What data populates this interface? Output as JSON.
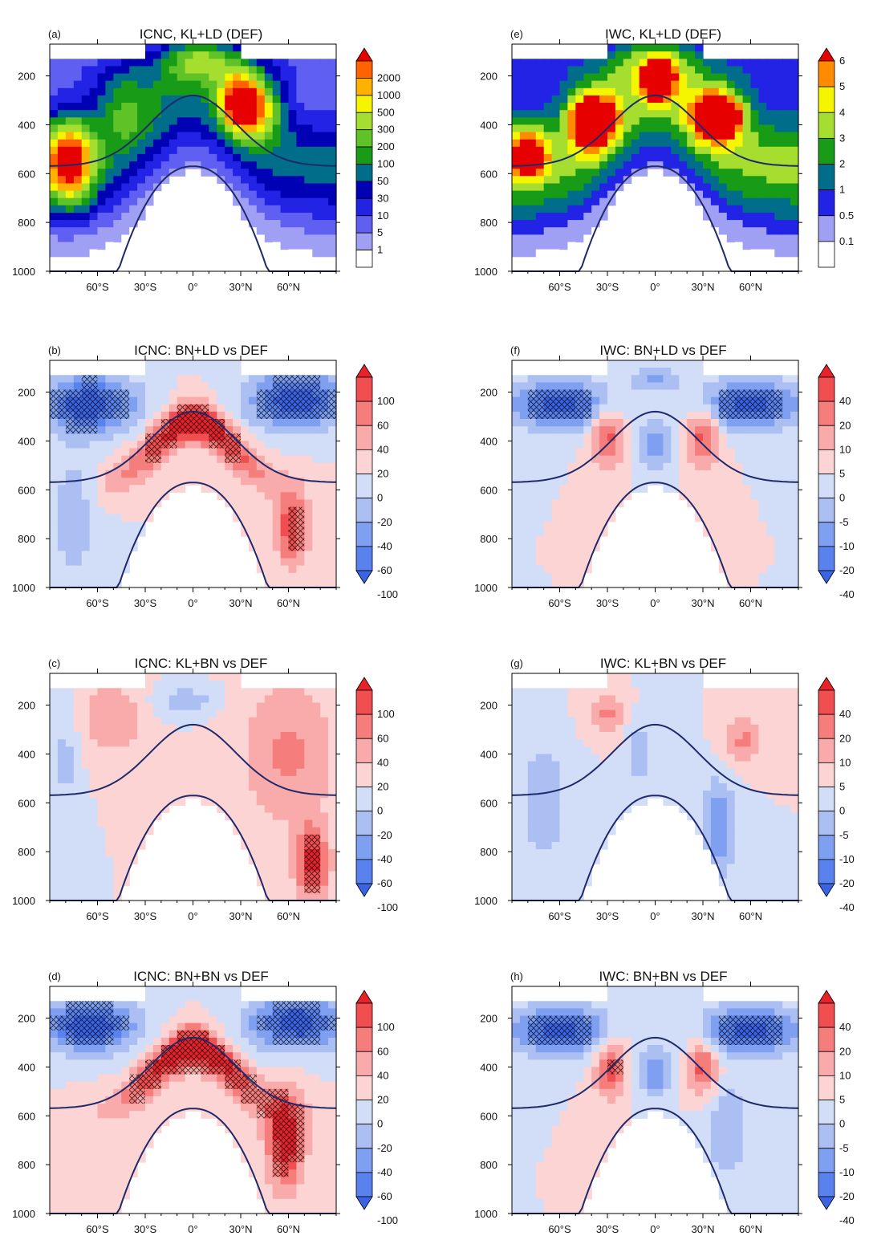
{
  "chart_data": [
    {
      "type": "heatmap",
      "letter": "(a)",
      "title": "ICNC, KL+LD (DEF)",
      "ytick_labels": [
        "200",
        "400",
        "600",
        "800",
        "1000"
      ],
      "yticks": [
        200,
        400,
        600,
        800,
        1000
      ],
      "ylim": [
        1000,
        70
      ],
      "xtick_labels": [
        "60°S",
        "30°S",
        "0°",
        "30°N",
        "60°N"
      ],
      "xticks": [
        -60,
        -30,
        0,
        30,
        60
      ],
      "xlim": [
        -90,
        90
      ],
      "colorbar_labels": [
        "1",
        "5",
        "10",
        "30",
        "50",
        "100",
        "200",
        "300",
        "500",
        "1000",
        "2000"
      ],
      "colors": [
        "#ffffff",
        "#9fa0f4",
        "#5f5ff2",
        "#2323e6",
        "#0000b4",
        "#006e8a",
        "#189c18",
        "#5fc328",
        "#a5de2f",
        "#f5f500",
        "#ffb100",
        "#ff6200",
        "#e60000"
      ],
      "scale": "abs",
      "hatching": false,
      "features": [
        {
          "kind": "blob",
          "lat": -78,
          "p": 550,
          "wlat": 16,
          "wp": 180,
          "amp": 3.5
        },
        {
          "kind": "blob",
          "lat": 30,
          "p": 310,
          "wlat": 13,
          "wp": 120,
          "amp": 3.8
        },
        {
          "kind": "blob",
          "lat": 45,
          "p": 330,
          "wlat": 14,
          "wp": 140,
          "amp": 1.8
        },
        {
          "kind": "blob",
          "lat": 10,
          "p": 130,
          "wlat": 25,
          "wp": 80,
          "amp": 1.2
        },
        {
          "kind": "blob",
          "lat": -45,
          "p": 320,
          "wlat": 18,
          "wp": 160,
          "amp": 1.4
        }
      ]
    },
    {
      "type": "heatmap",
      "letter": "(b)",
      "title": "ICNC: BN+LD vs DEF",
      "ytick_labels": [
        "200",
        "400",
        "600",
        "800",
        "1000"
      ],
      "yticks": [
        200,
        400,
        600,
        800,
        1000
      ],
      "ylim": [
        1000,
        70
      ],
      "xtick_labels": [
        "60°S",
        "30°S",
        "0°",
        "30°N",
        "60°N"
      ],
      "xticks": [
        -60,
        -30,
        0,
        30,
        60
      ],
      "xlim": [
        -90,
        90
      ],
      "colorbar_labels": [
        "100",
        "60",
        "40",
        "20",
        "0",
        "-20",
        "-40",
        "-60",
        "-100"
      ],
      "colors": [
        "#e8212b",
        "#f04e50",
        "#f57d7b",
        "#f9aaaa",
        "#fcd4d4",
        "#d2ddf7",
        "#abbff2",
        "#7fa0f0",
        "#5a82ee",
        "#3a63e6"
      ],
      "scale": "diff",
      "hatching": true,
      "features": [
        {
          "kind": "arch",
          "amp": 3.2
        },
        {
          "kind": "blob",
          "lat": -65,
          "p": 250,
          "wlat": 30,
          "wp": 120,
          "amp": -3.0
        },
        {
          "kind": "blob",
          "lat": 65,
          "p": 230,
          "wlat": 30,
          "wp": 120,
          "amp": -3.0
        },
        {
          "kind": "blob",
          "lat": -75,
          "p": 700,
          "wlat": 15,
          "wp": 250,
          "amp": -1.2
        },
        {
          "kind": "blob",
          "lat": 62,
          "p": 760,
          "wlat": 10,
          "wp": 150,
          "amp": 2.5
        }
      ]
    },
    {
      "type": "heatmap",
      "letter": "(c)",
      "title": "ICNC: KL+BN vs DEF",
      "ytick_labels": [
        "200",
        "400",
        "600",
        "800",
        "1000"
      ],
      "yticks": [
        200,
        400,
        600,
        800,
        1000
      ],
      "ylim": [
        1000,
        70
      ],
      "xtick_labels": [
        "60°S",
        "30°S",
        "0°",
        "30°N",
        "60°N"
      ],
      "xticks": [
        -60,
        -30,
        0,
        30,
        60
      ],
      "xlim": [
        -90,
        90
      ],
      "colorbar_labels": [
        "100",
        "60",
        "40",
        "20",
        "0",
        "-20",
        "-40",
        "-60",
        "-100"
      ],
      "colors": [
        "#e8212b",
        "#f04e50",
        "#f57d7b",
        "#f9aaaa",
        "#fcd4d4",
        "#d2ddf7",
        "#abbff2",
        "#7fa0f0",
        "#5a82ee",
        "#3a63e6"
      ],
      "scale": "diff",
      "hatching": true,
      "features": [
        {
          "kind": "blob",
          "lat": -50,
          "p": 250,
          "wlat": 20,
          "wp": 150,
          "amp": 1.2
        },
        {
          "kind": "blob",
          "lat": 60,
          "p": 400,
          "wlat": 30,
          "wp": 300,
          "amp": 1.4
        },
        {
          "kind": "blob",
          "lat": 75,
          "p": 850,
          "wlat": 10,
          "wp": 150,
          "amp": 2.8
        },
        {
          "kind": "blob",
          "lat": -5,
          "p": 180,
          "wlat": 20,
          "wp": 60,
          "amp": -1.0
        },
        {
          "kind": "blob",
          "lat": -80,
          "p": 400,
          "wlat": 8,
          "wp": 300,
          "amp": -0.8
        }
      ]
    },
    {
      "type": "heatmap",
      "letter": "(d)",
      "title": "ICNC: BN+BN vs DEF",
      "ytick_labels": [
        "200",
        "400",
        "600",
        "800",
        "1000"
      ],
      "yticks": [
        200,
        400,
        600,
        800,
        1000
      ],
      "ylim": [
        1000,
        70
      ],
      "xtick_labels": [
        "60°S",
        "30°S",
        "0°",
        "30°N",
        "60°N"
      ],
      "xticks": [
        -60,
        -30,
        0,
        30,
        60
      ],
      "xlim": [
        -90,
        90
      ],
      "colorbar_labels": [
        "100",
        "60",
        "40",
        "20",
        "0",
        "-20",
        "-40",
        "-60",
        "-100"
      ],
      "colors": [
        "#e8212b",
        "#f04e50",
        "#f57d7b",
        "#f9aaaa",
        "#fcd4d4",
        "#d2ddf7",
        "#abbff2",
        "#7fa0f0",
        "#5a82ee",
        "#3a63e6"
      ],
      "scale": "diff",
      "hatching": true,
      "features": [
        {
          "kind": "arch",
          "amp": 3.5
        },
        {
          "kind": "blob",
          "lat": -65,
          "p": 230,
          "wlat": 30,
          "wp": 110,
          "amp": -3.0
        },
        {
          "kind": "blob",
          "lat": 65,
          "p": 220,
          "wlat": 30,
          "wp": 110,
          "amp": -3.0
        },
        {
          "kind": "blob",
          "lat": 58,
          "p": 700,
          "wlat": 12,
          "wp": 200,
          "amp": 3.0
        }
      ]
    },
    {
      "type": "heatmap",
      "letter": "(e)",
      "title": "IWC, KL+LD (DEF)",
      "ytick_labels": [
        "200",
        "400",
        "600",
        "800",
        "1000"
      ],
      "yticks": [
        200,
        400,
        600,
        800,
        1000
      ],
      "ylim": [
        1000,
        70
      ],
      "xtick_labels": [
        "60°S",
        "30°S",
        "0°",
        "30°N",
        "60°N"
      ],
      "xticks": [
        -60,
        -30,
        0,
        30,
        60
      ],
      "xlim": [
        -90,
        90
      ],
      "colorbar_labels": [
        "0.1",
        "0.5",
        "1",
        "2",
        "3",
        "4",
        "5",
        "6"
      ],
      "colors": [
        "#ffffff",
        "#9fa0f4",
        "#2323e6",
        "#006e8a",
        "#189c18",
        "#a5de2f",
        "#f5f500",
        "#ff8c00",
        "#e60000"
      ],
      "scale": "abs",
      "hatching": false,
      "features": [
        {
          "kind": "blob",
          "lat": 2,
          "p": 220,
          "wlat": 8,
          "wp": 70,
          "amp": 4.5
        },
        {
          "kind": "blob",
          "lat": -40,
          "p": 380,
          "wlat": 14,
          "wp": 110,
          "amp": 3.4
        },
        {
          "kind": "blob",
          "lat": 40,
          "p": 360,
          "wlat": 15,
          "wp": 100,
          "amp": 3.6
        },
        {
          "kind": "blob",
          "lat": -80,
          "p": 520,
          "wlat": 12,
          "wp": 100,
          "amp": 2.2
        }
      ]
    },
    {
      "type": "heatmap",
      "letter": "(f)",
      "title": "IWC: BN+LD vs DEF",
      "ytick_labels": [
        "200",
        "400",
        "600",
        "800",
        "1000"
      ],
      "yticks": [
        200,
        400,
        600,
        800,
        1000
      ],
      "ylim": [
        1000,
        70
      ],
      "xtick_labels": [
        "60°S",
        "30°S",
        "0°",
        "30°N",
        "60°N"
      ],
      "xticks": [
        -60,
        -30,
        0,
        30,
        60
      ],
      "xlim": [
        -90,
        90
      ],
      "colorbar_labels": [
        "40",
        "20",
        "10",
        "5",
        "0",
        "-5",
        "-10",
        "-20",
        "-40"
      ],
      "colors": [
        "#e8212b",
        "#f04e50",
        "#f57d7b",
        "#f9aaaa",
        "#fcd4d4",
        "#d2ddf7",
        "#abbff2",
        "#7fa0f0",
        "#5a82ee",
        "#3a63e6"
      ],
      "scale": "diff",
      "hatching": true,
      "features": [
        {
          "kind": "blob",
          "lat": -30,
          "p": 380,
          "wlat": 10,
          "wp": 120,
          "amp": 2.2
        },
        {
          "kind": "blob",
          "lat": 30,
          "p": 380,
          "wlat": 10,
          "wp": 120,
          "amp": 2.2
        },
        {
          "kind": "blob",
          "lat": 0,
          "p": 420,
          "wlat": 10,
          "wp": 100,
          "amp": -1.8
        },
        {
          "kind": "blob",
          "lat": -60,
          "p": 250,
          "wlat": 30,
          "wp": 100,
          "amp": -3.0
        },
        {
          "kind": "blob",
          "lat": 60,
          "p": 250,
          "wlat": 30,
          "wp": 100,
          "amp": -3.0
        },
        {
          "kind": "blob",
          "lat": 0,
          "p": 150,
          "wlat": 15,
          "wp": 50,
          "amp": -1.5
        }
      ]
    },
    {
      "type": "heatmap",
      "letter": "(g)",
      "title": "IWC: KL+BN vs DEF",
      "ytick_labels": [
        "200",
        "400",
        "600",
        "800",
        "1000"
      ],
      "yticks": [
        200,
        400,
        600,
        800,
        1000
      ],
      "ylim": [
        1000,
        70
      ],
      "xtick_labels": [
        "60°S",
        "30°S",
        "0°",
        "30°N",
        "60°N"
      ],
      "xticks": [
        -60,
        -30,
        0,
        30,
        60
      ],
      "xlim": [
        -90,
        90
      ],
      "colorbar_labels": [
        "40",
        "20",
        "10",
        "5",
        "0",
        "-5",
        "-10",
        "-20",
        "-40"
      ],
      "colors": [
        "#e8212b",
        "#f04e50",
        "#f57d7b",
        "#f9aaaa",
        "#fcd4d4",
        "#d2ddf7",
        "#abbff2",
        "#7fa0f0",
        "#5a82ee",
        "#3a63e6"
      ],
      "scale": "diff",
      "hatching": true,
      "features": [
        {
          "kind": "blob",
          "lat": -30,
          "p": 230,
          "wlat": 12,
          "wp": 80,
          "amp": 1.4
        },
        {
          "kind": "blob",
          "lat": 55,
          "p": 350,
          "wlat": 12,
          "wp": 100,
          "amp": 1.4
        },
        {
          "kind": "blob",
          "lat": 40,
          "p": 700,
          "wlat": 12,
          "wp": 200,
          "amp": -1.8
        },
        {
          "kind": "blob",
          "lat": -70,
          "p": 600,
          "wlat": 15,
          "wp": 250,
          "amp": -1.2
        },
        {
          "kind": "blob",
          "lat": -10,
          "p": 400,
          "wlat": 8,
          "wp": 150,
          "amp": -1.0
        }
      ]
    },
    {
      "type": "heatmap",
      "letter": "(h)",
      "title": "IWC: BN+BN vs DEF",
      "ytick_labels": [
        "200",
        "400",
        "600",
        "800",
        "1000"
      ],
      "yticks": [
        200,
        400,
        600,
        800,
        1000
      ],
      "ylim": [
        1000,
        70
      ],
      "xtick_labels": [
        "60°S",
        "30°S",
        "0°",
        "30°N",
        "60°N"
      ],
      "xticks": [
        -60,
        -30,
        0,
        30,
        60
      ],
      "xlim": [
        -90,
        90
      ],
      "colorbar_labels": [
        "40",
        "20",
        "10",
        "5",
        "0",
        "-5",
        "-10",
        "-20",
        "-40"
      ],
      "colors": [
        "#e8212b",
        "#f04e50",
        "#f57d7b",
        "#f9aaaa",
        "#fcd4d4",
        "#d2ddf7",
        "#abbff2",
        "#7fa0f0",
        "#5a82ee",
        "#3a63e6"
      ],
      "scale": "diff",
      "hatching": true,
      "features": [
        {
          "kind": "blob",
          "lat": -28,
          "p": 400,
          "wlat": 10,
          "wp": 130,
          "amp": 2.2
        },
        {
          "kind": "blob",
          "lat": 30,
          "p": 400,
          "wlat": 10,
          "wp": 120,
          "amp": 2.2
        },
        {
          "kind": "blob",
          "lat": 0,
          "p": 420,
          "wlat": 12,
          "wp": 100,
          "amp": -1.8
        },
        {
          "kind": "blob",
          "lat": -60,
          "p": 250,
          "wlat": 30,
          "wp": 100,
          "amp": -3.0
        },
        {
          "kind": "blob",
          "lat": 60,
          "p": 250,
          "wlat": 30,
          "wp": 100,
          "amp": -3.0
        },
        {
          "kind": "blob",
          "lat": 45,
          "p": 650,
          "wlat": 15,
          "wp": 200,
          "amp": -1.2
        }
      ]
    }
  ]
}
